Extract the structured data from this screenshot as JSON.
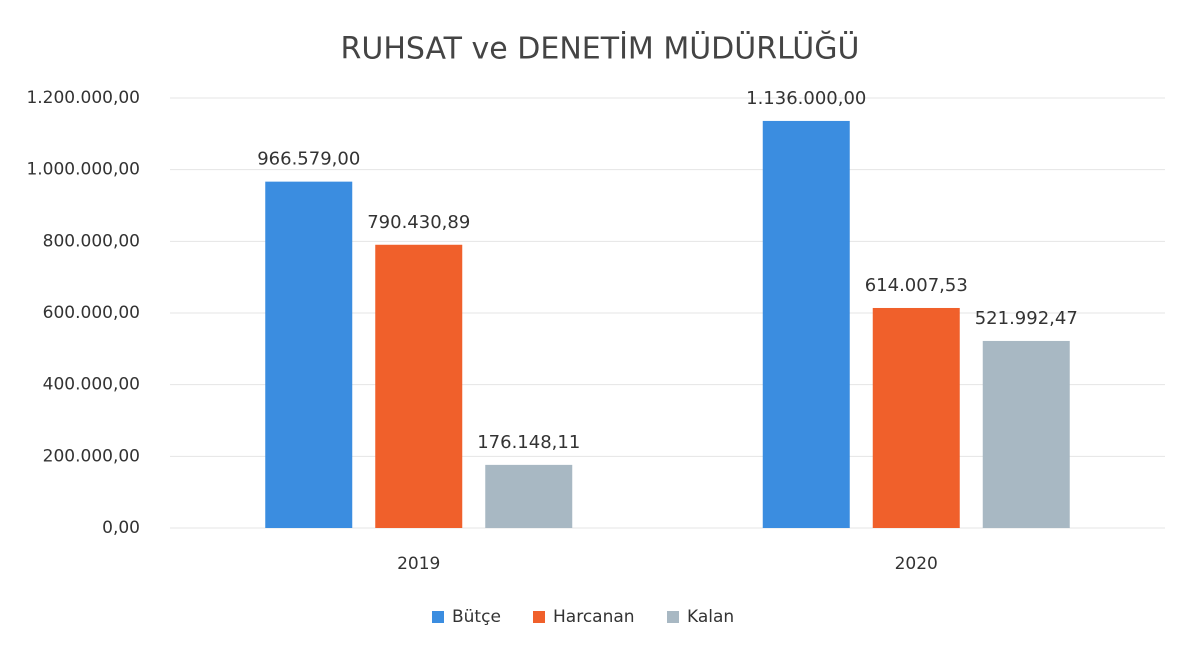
{
  "chart_data": {
    "type": "bar",
    "title": "RUHSAT ve DENETİM MÜDÜRLÜĞÜ",
    "categories": [
      "2019",
      "2020"
    ],
    "series": [
      {
        "name": "Bütçe",
        "color": "#3b8de0",
        "values": [
          966579,
          1136000
        ],
        "value_labels": [
          "966.579,00",
          "1.136.000,00"
        ]
      },
      {
        "name": "Harcanan",
        "color": "#f0602b",
        "values": [
          790430.89,
          614007.53
        ],
        "value_labels": [
          "790.430,89",
          "614.007,53"
        ]
      },
      {
        "name": "Kalan",
        "color": "#a8b8c3",
        "values": [
          176148.11,
          521992.47
        ],
        "value_labels": [
          "176.148,11",
          "521.992,47"
        ]
      }
    ],
    "ylim": [
      0,
      1200000
    ],
    "yticks": [
      {
        "value": 0,
        "label": "0,00"
      },
      {
        "value": 200000,
        "label": "200.000,00"
      },
      {
        "value": 400000,
        "label": "400.000,00"
      },
      {
        "value": 600000,
        "label": "600.000,00"
      },
      {
        "value": 800000,
        "label": "800.000,00"
      },
      {
        "value": 1000000,
        "label": "1.000.000,00"
      },
      {
        "value": 1200000,
        "label": "1.200.000,00"
      }
    ],
    "grid": true,
    "legend": "bottom"
  }
}
